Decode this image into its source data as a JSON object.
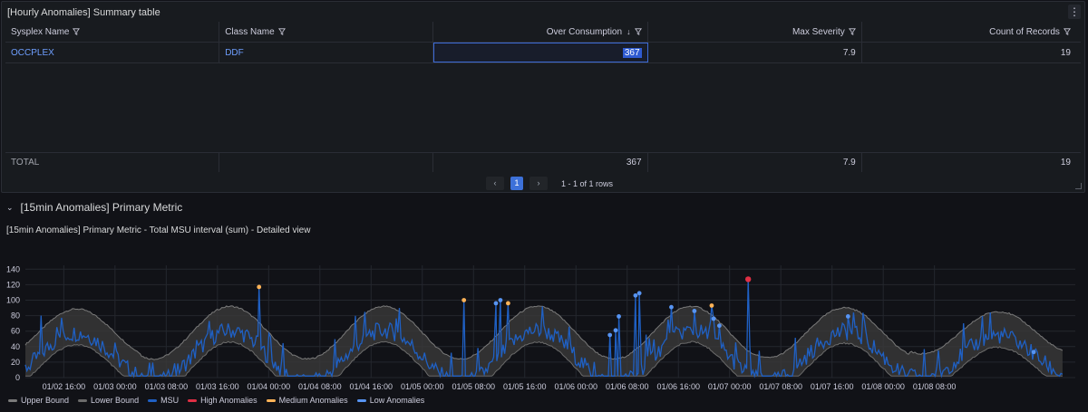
{
  "table_panel": {
    "title": "[Hourly Anomalies] Summary table",
    "columns": [
      "Sysplex Name",
      "Class Name",
      "Over Consumption",
      "Max Severity",
      "Count of Records"
    ],
    "rows": [
      [
        "OCCPLEX",
        "DDF",
        "367",
        "7.9",
        "19"
      ]
    ],
    "total": {
      "label": "TOTAL",
      "over_consumption": "367",
      "max_severity": "7.9",
      "count": "19"
    },
    "pager": {
      "prev": "‹",
      "page": "1",
      "next": "›",
      "info": "1 - 1 of 1 rows"
    }
  },
  "row_group": {
    "title": "[15min Anomalies] Primary Metric"
  },
  "chart_panel": {
    "title": "[15min Anomalies] Primary Metric - Total MSU interval (sum) - Detailed view"
  },
  "chart_data": {
    "type": "line",
    "x_ticks": [
      "01/02 16:00",
      "01/03 00:00",
      "01/03 08:00",
      "01/03 16:00",
      "01/04 00:00",
      "01/04 08:00",
      "01/04 16:00",
      "01/05 00:00",
      "01/05 08:00",
      "01/05 16:00",
      "01/06 00:00",
      "01/06 08:00",
      "01/06 16:00",
      "01/07 00:00",
      "01/07 08:00",
      "01/07 16:00",
      "01/08 00:00",
      "01/08 08:00"
    ],
    "y_ticks": [
      0,
      20,
      40,
      60,
      80,
      100,
      120,
      140
    ],
    "ylim": [
      0,
      145
    ],
    "x_range_hours": [
      -6,
      158
    ],
    "grid": true,
    "legend_position": "bottom-left",
    "series": [
      {
        "name": "Upper Bound",
        "color": "#7a7a7a"
      },
      {
        "name": "Lower Bound",
        "color": "#6b6b6b"
      },
      {
        "name": "MSU",
        "color": "#1f60c4"
      },
      {
        "name": "High Anomalies",
        "color": "#e02f44"
      },
      {
        "name": "Medium Anomalies",
        "color": "#ffb357"
      },
      {
        "name": "Low Anomalies",
        "color": "#5794f2"
      }
    ],
    "anomalies": [
      {
        "t": 30.5,
        "v": 117,
        "level": "Medium Anomalies"
      },
      {
        "t": 62.5,
        "v": 100,
        "level": "Medium Anomalies"
      },
      {
        "t": 67.5,
        "v": 96,
        "level": "Low Anomalies"
      },
      {
        "t": 68.2,
        "v": 100,
        "level": "Low Anomalies"
      },
      {
        "t": 69.4,
        "v": 96,
        "level": "Medium Anomalies"
      },
      {
        "t": 85.3,
        "v": 55,
        "level": "Low Anomalies"
      },
      {
        "t": 86.2,
        "v": 61,
        "level": "Low Anomalies"
      },
      {
        "t": 86.7,
        "v": 79,
        "level": "Low Anomalies"
      },
      {
        "t": 89.3,
        "v": 106,
        "level": "Low Anomalies"
      },
      {
        "t": 89.9,
        "v": 109,
        "level": "Low Anomalies"
      },
      {
        "t": 94.9,
        "v": 91,
        "level": "Low Anomalies"
      },
      {
        "t": 98.5,
        "v": 86,
        "level": "Low Anomalies"
      },
      {
        "t": 101.2,
        "v": 93,
        "level": "Medium Anomalies"
      },
      {
        "t": 101.5,
        "v": 76,
        "level": "Low Anomalies"
      },
      {
        "t": 102.4,
        "v": 67,
        "level": "Low Anomalies"
      },
      {
        "t": 106.9,
        "v": 127,
        "level": "High Anomalies"
      },
      {
        "t": 122.5,
        "v": 79,
        "level": "Low Anomalies"
      },
      {
        "t": 151.5,
        "v": 33,
        "level": "Low Anomalies"
      }
    ]
  }
}
